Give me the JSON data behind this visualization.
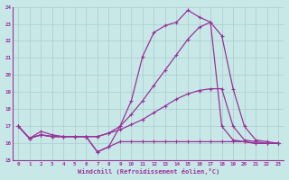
{
  "xlabel": "Windchill (Refroidissement éolien,°C)",
  "xlim_min": -0.5,
  "xlim_max": 23.5,
  "ylim_min": 15,
  "ylim_max": 24,
  "yticks": [
    15,
    16,
    17,
    18,
    19,
    20,
    21,
    22,
    23,
    24
  ],
  "xticks": [
    0,
    1,
    2,
    3,
    4,
    5,
    6,
    7,
    8,
    9,
    10,
    11,
    12,
    13,
    14,
    15,
    16,
    17,
    18,
    19,
    20,
    21,
    22,
    23
  ],
  "background_color": "#c8e8e8",
  "grid_color": "#aacccc",
  "line_color": "#993399",
  "figsize": [
    3.2,
    2.0
  ],
  "dpi": 100,
  "curves": [
    {
      "x": [
        0,
        1,
        2,
        3,
        4,
        5,
        6,
        7,
        8,
        9,
        10,
        11,
        12,
        13,
        14,
        15,
        16,
        17,
        18,
        19,
        20,
        21,
        22,
        23
      ],
      "y": [
        17.0,
        16.3,
        16.7,
        16.5,
        16.4,
        16.4,
        16.4,
        15.5,
        15.8,
        17.0,
        18.5,
        21.1,
        22.5,
        22.9,
        23.1,
        23.8,
        23.4,
        23.1,
        17.0,
        16.2,
        16.1,
        16.0,
        16.0,
        16.0
      ]
    },
    {
      "x": [
        0,
        1,
        2,
        3,
        4,
        5,
        6,
        7,
        8,
        9,
        10,
        11,
        12,
        13,
        14,
        15,
        16,
        17,
        18,
        19,
        20,
        21,
        22,
        23
      ],
      "y": [
        17.0,
        16.3,
        16.5,
        16.4,
        16.4,
        16.4,
        16.4,
        16.4,
        16.6,
        17.0,
        17.7,
        18.5,
        19.4,
        20.3,
        21.2,
        22.1,
        22.8,
        23.1,
        22.3,
        19.2,
        17.0,
        16.2,
        16.1,
        16.0
      ]
    },
    {
      "x": [
        0,
        1,
        2,
        3,
        4,
        5,
        6,
        7,
        8,
        9,
        10,
        11,
        12,
        13,
        14,
        15,
        16,
        17,
        18,
        19,
        20,
        21,
        22,
        23
      ],
      "y": [
        17.0,
        16.3,
        16.5,
        16.4,
        16.4,
        16.4,
        16.4,
        16.4,
        16.6,
        16.8,
        17.1,
        17.4,
        17.8,
        18.2,
        18.6,
        18.9,
        19.1,
        19.2,
        19.2,
        17.0,
        16.2,
        16.1,
        16.0,
        16.0
      ]
    },
    {
      "x": [
        0,
        1,
        2,
        3,
        4,
        5,
        6,
        7,
        8,
        9,
        10,
        11,
        12,
        13,
        14,
        15,
        16,
        17,
        18,
        19,
        20,
        21,
        22,
        23
      ],
      "y": [
        17.0,
        16.3,
        16.5,
        16.4,
        16.4,
        16.4,
        16.4,
        15.5,
        15.8,
        16.1,
        16.1,
        16.1,
        16.1,
        16.1,
        16.1,
        16.1,
        16.1,
        16.1,
        16.1,
        16.1,
        16.1,
        16.0,
        16.0,
        16.0
      ]
    }
  ]
}
